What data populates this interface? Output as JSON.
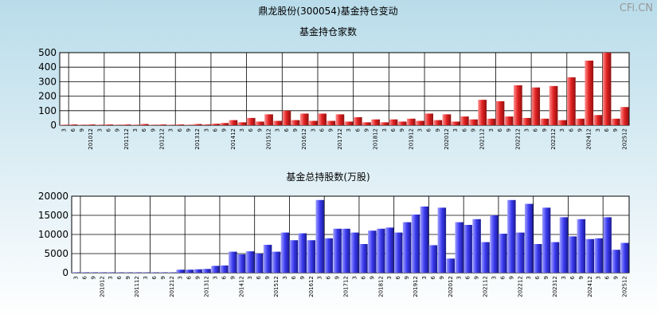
{
  "header": {
    "title": "鼎龙股份(300054)基金持仓变动",
    "watermark": "CFi.CN"
  },
  "chart_data": [
    {
      "type": "bar",
      "title": "基金持仓家数",
      "color": "#e02020",
      "categories": [
        "3",
        "6",
        "9",
        "201012",
        "3",
        "6",
        "9",
        "201112",
        "3",
        "6",
        "9",
        "201212",
        "3",
        "6",
        "9",
        "201312",
        "3",
        "6",
        "9",
        "201412",
        "3",
        "6",
        "9",
        "201512",
        "3",
        "6",
        "9",
        "201612",
        "3",
        "6",
        "9",
        "201712",
        "3",
        "6",
        "9",
        "201812",
        "3",
        "6",
        "9",
        "201912",
        "3",
        "6",
        "9",
        "202012",
        "3",
        "6",
        "9",
        "202112",
        "3",
        "6",
        "9",
        "202212",
        "3",
        "6",
        "9",
        "202312",
        "3",
        "6",
        "9",
        "202412",
        "3",
        "6",
        "9",
        "202512"
      ],
      "values": [
        3,
        5,
        3,
        5,
        3,
        5,
        3,
        5,
        3,
        8,
        3,
        5,
        3,
        5,
        3,
        8,
        5,
        10,
        15,
        35,
        20,
        50,
        25,
        75,
        30,
        100,
        35,
        80,
        30,
        80,
        30,
        75,
        25,
        55,
        20,
        40,
        20,
        40,
        25,
        45,
        30,
        80,
        35,
        75,
        25,
        60,
        40,
        175,
        45,
        165,
        60,
        275,
        50,
        260,
        45,
        270,
        35,
        330,
        45,
        445,
        70,
        500,
        45,
        125
      ],
      "ylim": [
        0,
        500
      ],
      "yticks": [
        0,
        100,
        200,
        300,
        400,
        500
      ],
      "grid": true
    },
    {
      "type": "bar",
      "title": "基金总持股数(万股)",
      "color": "#3a3af0",
      "categories": [
        "3",
        "6",
        "9",
        "201012",
        "3",
        "6",
        "9",
        "201112",
        "3",
        "6",
        "9",
        "201212",
        "3",
        "6",
        "9",
        "201312",
        "3",
        "6",
        "9",
        "201412",
        "3",
        "6",
        "9",
        "201512",
        "3",
        "6",
        "9",
        "201612",
        "3",
        "6",
        "9",
        "201712",
        "3",
        "6",
        "9",
        "201812",
        "3",
        "6",
        "9",
        "201912",
        "3",
        "6",
        "9",
        "202012",
        "3",
        "6",
        "9",
        "202112",
        "3",
        "6",
        "9",
        "202212",
        "3",
        "6",
        "9",
        "202312",
        "3",
        "6",
        "9",
        "202412",
        "3",
        "6",
        "9",
        "202512"
      ],
      "values": [
        100,
        100,
        100,
        100,
        100,
        100,
        100,
        100,
        100,
        100,
        100,
        100,
        800,
        800,
        900,
        1000,
        1800,
        1900,
        5500,
        4800,
        5600,
        5000,
        7300,
        5500,
        10500,
        8500,
        10300,
        8500,
        19000,
        9000,
        11500,
        11500,
        10500,
        7500,
        11000,
        11500,
        11800,
        10500,
        13200,
        15200,
        17300,
        7200,
        17000,
        3700,
        13200,
        12500,
        14000,
        8000,
        15000,
        10200,
        19000,
        10500,
        18000,
        7500,
        17000,
        8000,
        14500,
        9500,
        14000,
        8800,
        9000,
        14500,
        6000,
        7800
      ],
      "ylim": [
        0,
        20000
      ],
      "yticks": [
        0,
        5000,
        10000,
        15000,
        20000
      ],
      "grid": true
    }
  ]
}
